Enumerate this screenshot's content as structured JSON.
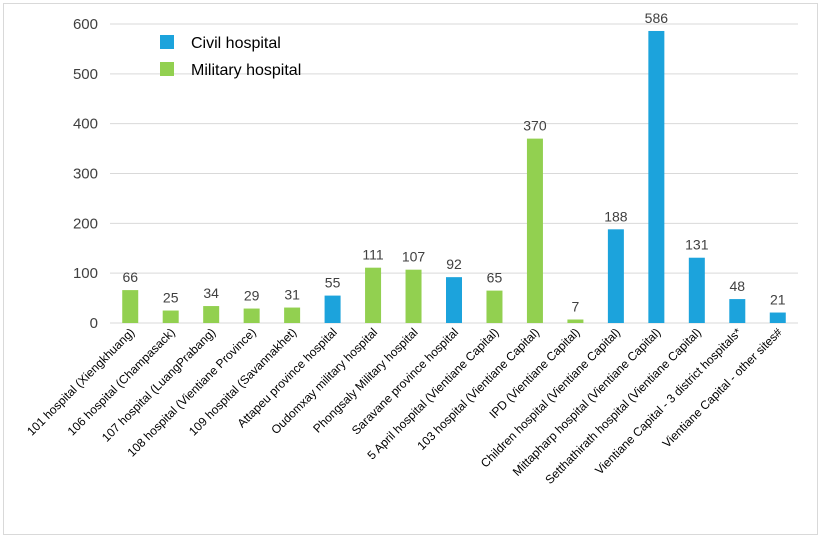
{
  "chart_data": {
    "type": "bar",
    "title": "",
    "xlabel": "",
    "ylabel": "",
    "ylim": [
      0,
      600
    ],
    "yticks": [
      0,
      100,
      200,
      300,
      400,
      500,
      600
    ],
    "grid": true,
    "legend_position": "top-left",
    "series": [
      {
        "name": "Civil hospital",
        "color": "#1ca3dc"
      },
      {
        "name": "Military hospital",
        "color": "#92d050"
      }
    ],
    "categories": [
      "101 hospital (Xiengkhuang)",
      "106 hospital (Champasack)",
      "107 hospital (LuangPrabang)",
      "108 hospital (Vientiane Province)",
      "109 hospital (Savannakhet)",
      "Attapeu province hospital",
      "Oudomxay military hospital",
      "Phongsaly Military hospital",
      "Saravane province hospital",
      "5 April hospital (Vientiane Capital)",
      "103 hospital (Vientiane Capital)",
      "IPD (Vientiane Capital)",
      "Children hospital (Vientiane Capital)",
      "Mittapharp hospital (Vientiane Capital)",
      "Setthathirath hospital (Vientiane Capital)",
      "Vientiane Capital - 3 district hospitals*",
      "Vientiane Capital - other sites#"
    ],
    "values": [
      66,
      25,
      34,
      29,
      31,
      55,
      111,
      107,
      92,
      65,
      370,
      7,
      188,
      586,
      131,
      48,
      21
    ],
    "bar_series": [
      "Military hospital",
      "Military hospital",
      "Military hospital",
      "Military hospital",
      "Military hospital",
      "Civil hospital",
      "Military hospital",
      "Military hospital",
      "Civil hospital",
      "Military hospital",
      "Military hospital",
      "Military hospital",
      "Civil hospital",
      "Civil hospital",
      "Civil hospital",
      "Civil hospital",
      "Civil hospital"
    ]
  }
}
